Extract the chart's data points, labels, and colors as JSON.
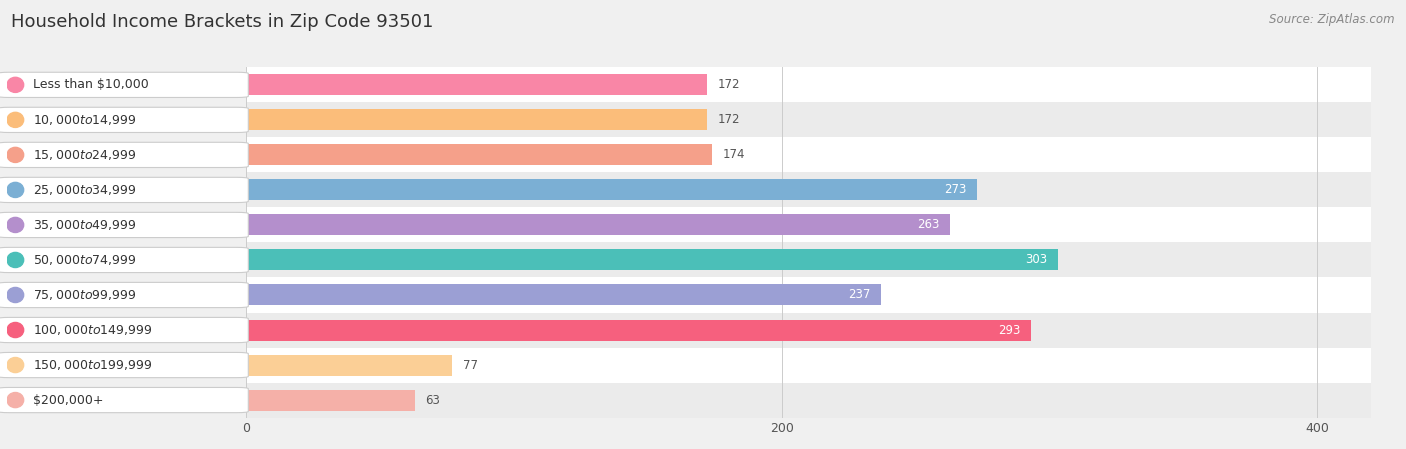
{
  "title": "Household Income Brackets in Zip Code 93501",
  "source": "Source: ZipAtlas.com",
  "categories": [
    "Less than $10,000",
    "$10,000 to $14,999",
    "$15,000 to $24,999",
    "$25,000 to $34,999",
    "$35,000 to $49,999",
    "$50,000 to $74,999",
    "$75,000 to $99,999",
    "$100,000 to $149,999",
    "$150,000 to $199,999",
    "$200,000+"
  ],
  "values": [
    172,
    172,
    174,
    273,
    263,
    303,
    237,
    293,
    77,
    63
  ],
  "bar_colors": [
    "#F986A6",
    "#FBBD7A",
    "#F5A08A",
    "#7BAFD4",
    "#B48FCC",
    "#4BBFB8",
    "#9B9FD4",
    "#F6607E",
    "#FBCF96",
    "#F5B0A8"
  ],
  "background_color": "#f0f0f0",
  "xlim": [
    0,
    420
  ],
  "xticks": [
    0,
    200,
    400
  ],
  "title_fontsize": 13,
  "label_fontsize": 9.0,
  "value_fontsize": 8.5,
  "source_fontsize": 8.5
}
